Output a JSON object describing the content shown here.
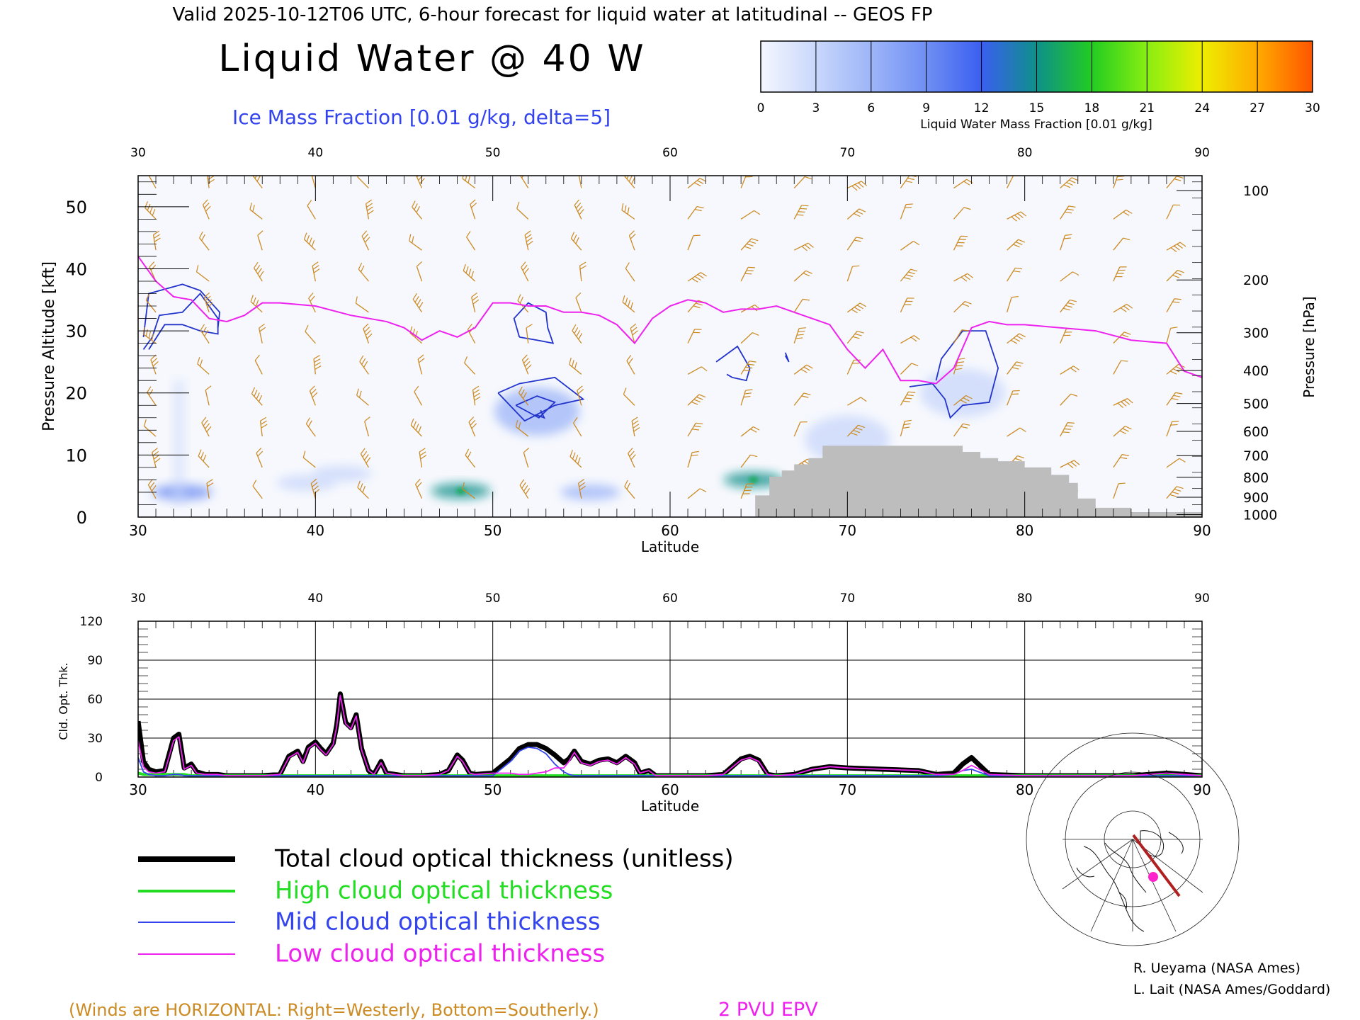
{
  "header": {
    "valid_line": "Valid 2025-10-12T06 UTC, 6-hour forecast for liquid water at latitudinal -- GEOS FP",
    "title": "Liquid Water @ 40 W",
    "subtitle": "Ice Mass Fraction [0.01 g/kg, delta=5]"
  },
  "colorbar": {
    "label": "Liquid Water Mass Fraction [0.01 g/kg]",
    "ticks": [
      "0",
      "3",
      "6",
      "9",
      "12",
      "15",
      "18",
      "21",
      "24",
      "27",
      "30"
    ],
    "colors": [
      "#f4f7fe",
      "#c9d7fb",
      "#9db5f8",
      "#6f8ff3",
      "#3a5ff0",
      "#0f8f8a",
      "#22cc22",
      "#88ee11",
      "#eeee00",
      "#ffaa00",
      "#ff5500"
    ]
  },
  "credits": {
    "line1": "R. Ueyama (NASA Ames)",
    "line2": "L. Lait (NASA Ames/Goddard)"
  },
  "footer": {
    "winds_note": "(Winds are HORIZONTAL: Right=Westerly, Bottom=Southerly.)",
    "epv_label": "2 PVU EPV",
    "winds_color": "#cc8a22",
    "epv_color": "#ee22ee"
  },
  "legend": {
    "items": [
      {
        "label": "Total cloud optical thickness (unitless)",
        "color": "#000000"
      },
      {
        "label": "High cloud optical thickness",
        "color": "#22dd22"
      },
      {
        "label": "Mid cloud optical thickness",
        "color": "#3344ee"
      },
      {
        "label": "Low cloud optical thickness",
        "color": "#ee22ee"
      }
    ]
  },
  "chart_data": [
    {
      "type": "heatmap",
      "title": "Liquid Water @ 40 W",
      "xlabel": "Latitude",
      "ylabel": "Pressure Altitude [kft]",
      "ylabel_right": "Pressure [hPa]",
      "xlim": [
        30,
        90
      ],
      "ylim": [
        0,
        55
      ],
      "x_ticks": [
        "30",
        "40",
        "50",
        "60",
        "70",
        "80",
        "90"
      ],
      "y_ticks": [
        "0",
        "10",
        "20",
        "30",
        "40",
        "50"
      ],
      "pressure_ticks": [
        {
          "label": "100",
          "kft": 52.6
        },
        {
          "label": "200",
          "kft": 38.2
        },
        {
          "label": "300",
          "kft": 29.7
        },
        {
          "label": "400",
          "kft": 23.6
        },
        {
          "label": "500",
          "kft": 18.3
        },
        {
          "label": "600",
          "kft": 13.8
        },
        {
          "label": "700",
          "kft": 9.9
        },
        {
          "label": "800",
          "kft": 6.4
        },
        {
          "label": "900",
          "kft": 3.2
        },
        {
          "label": "1000",
          "kft": 0.4
        }
      ],
      "epv_2pvu": {
        "lat": [
          30,
          31,
          32,
          33,
          34,
          35,
          36,
          37,
          38,
          40,
          42,
          44,
          45,
          46,
          47,
          48,
          49,
          50,
          51,
          52,
          53,
          54,
          55,
          56,
          57,
          58,
          59,
          60,
          61,
          62,
          63,
          64,
          65,
          66,
          67,
          68,
          69,
          70,
          71,
          72,
          73,
          74,
          75,
          76,
          77,
          78,
          79,
          80,
          82,
          84,
          86,
          88,
          89,
          90
        ],
        "kft": [
          42,
          38,
          35.5,
          35,
          32,
          31.5,
          32.5,
          34.5,
          34.5,
          34,
          32.5,
          31.5,
          30.5,
          28.5,
          30,
          29,
          30.5,
          34.5,
          34.5,
          34,
          34,
          33,
          33,
          32.5,
          31,
          28,
          32,
          34,
          35,
          34.5,
          33,
          33.5,
          33.5,
          34,
          33,
          32,
          31,
          27,
          24,
          27,
          22,
          22,
          21.5,
          24,
          30.5,
          31.5,
          31,
          31,
          30.5,
          30,
          28.5,
          28,
          23.5,
          22.5
        ]
      },
      "ice_contour_regions": [
        {
          "lat": 31.8,
          "kft": 33,
          "value": 5
        },
        {
          "lat": 52.5,
          "kft": 17,
          "value": 10
        },
        {
          "lat": 52.0,
          "kft": 30,
          "value": 5
        },
        {
          "lat": 64.2,
          "kft": 25,
          "value": 5
        },
        {
          "lat": 76.0,
          "kft": 25,
          "value": 5
        }
      ],
      "liquid_water_blobs": [
        {
          "lat": 32.5,
          "kft": 4,
          "value": 9
        },
        {
          "lat": 39.5,
          "kft": 5.5,
          "value": 4
        },
        {
          "lat": 41.5,
          "kft": 7,
          "value": 3
        },
        {
          "lat": 48.2,
          "kft": 4.2,
          "value": 14
        },
        {
          "lat": 52.5,
          "kft": 17,
          "value": 6
        },
        {
          "lat": 55.5,
          "kft": 4,
          "value": 6
        },
        {
          "lat": 64.7,
          "kft": 6,
          "value": 14
        },
        {
          "lat": 76.5,
          "kft": 20,
          "value": 3
        },
        {
          "lat": 70.0,
          "kft": 12.5,
          "value": 2
        }
      ],
      "terrain": {
        "lat": [
          64.8,
          65.6,
          66.3,
          67.0,
          67.8,
          68.6,
          75.0,
          76.5,
          77.5,
          78.5,
          80,
          81.5,
          82.5,
          83,
          84,
          86,
          90
        ],
        "kft": [
          3.5,
          6.5,
          7.5,
          8.5,
          9.5,
          11.5,
          11.5,
          10.5,
          9.5,
          9,
          8,
          6.8,
          5.5,
          3,
          1.5,
          0.8,
          0.8
        ]
      }
    },
    {
      "type": "line",
      "xlabel": "Latitude",
      "ylabel": "Cld. Opt. Thk.",
      "xlim": [
        30,
        90
      ],
      "ylim": [
        0,
        120
      ],
      "x_ticks": [
        "30",
        "40",
        "50",
        "60",
        "70",
        "80",
        "90"
      ],
      "y_ticks": [
        "0",
        "30",
        "60",
        "90",
        "120"
      ],
      "x": [
        30,
        30.3,
        30.6,
        31,
        31.5,
        32,
        32.3,
        32.6,
        33,
        33.3,
        33.8,
        34.5,
        35,
        36,
        37,
        38,
        38.5,
        39,
        39.3,
        39.6,
        40,
        40.3,
        40.6,
        41,
        41.2,
        41.4,
        41.7,
        42,
        42.3,
        42.6,
        43,
        43.3,
        43.7,
        44,
        44.5,
        45,
        46,
        47,
        47.5,
        48,
        48.3,
        48.7,
        49,
        50,
        51,
        51.5,
        52,
        52.5,
        53,
        53.5,
        54,
        54.3,
        54.6,
        55,
        55.5,
        56,
        56.5,
        57,
        57.5,
        58,
        58.3,
        58.8,
        59.2,
        60,
        62,
        63,
        64,
        64.5,
        65,
        65.5,
        66,
        67,
        68,
        69,
        70,
        72,
        74,
        75,
        76,
        76.5,
        77,
        78,
        80,
        84,
        86,
        88,
        90
      ],
      "series": [
        {
          "name": "Total cloud optical thickness (unitless)",
          "values": [
            43,
            12,
            6,
            4,
            5,
            30,
            33,
            7,
            10,
            4,
            2,
            2,
            1,
            1,
            1,
            2,
            16,
            20,
            12,
            23,
            27,
            22,
            18,
            26,
            40,
            64,
            42,
            38,
            48,
            22,
            5,
            2,
            12,
            3,
            2,
            1,
            1,
            2,
            5,
            17,
            13,
            3,
            2,
            3,
            14,
            22,
            25,
            25,
            22,
            17,
            11,
            14,
            20,
            12,
            10,
            13,
            14,
            11,
            16,
            11,
            3,
            5,
            1,
            1,
            1,
            2,
            14,
            16,
            13,
            2,
            1,
            2,
            6,
            8,
            7,
            6,
            5,
            2,
            3,
            10,
            15,
            2,
            1,
            1,
            1,
            3,
            1
          ]
        },
        {
          "name": "High cloud optical thickness",
          "values": [
            3,
            2,
            2,
            2,
            2,
            2,
            2,
            2,
            1,
            1,
            1,
            1,
            1,
            1,
            1,
            1,
            1,
            1,
            1,
            1,
            1,
            1,
            1,
            1,
            1,
            1,
            1,
            1,
            1,
            1,
            1,
            1,
            1,
            1,
            1,
            1,
            1,
            1,
            1,
            1,
            1,
            1,
            1,
            1,
            1,
            1,
            1,
            1,
            1,
            1,
            1,
            1,
            1,
            1,
            1,
            1,
            1,
            1,
            1,
            1,
            1,
            1,
            1,
            1,
            1,
            1,
            1,
            1,
            1,
            1,
            1,
            1,
            1,
            1,
            1,
            1,
            1,
            1,
            1,
            1,
            1,
            1,
            1,
            1,
            1,
            1,
            1
          ]
        },
        {
          "name": "Mid cloud optical thickness",
          "values": [
            15,
            4,
            2,
            1,
            1,
            2,
            2,
            1,
            1,
            1,
            1,
            1,
            1,
            1,
            1,
            1,
            1,
            1,
            1,
            1,
            1,
            1,
            1,
            1,
            1,
            1,
            1,
            1,
            1,
            1,
            1,
            1,
            1,
            1,
            1,
            1,
            1,
            1,
            1,
            1,
            1,
            1,
            1,
            1,
            12,
            20,
            23,
            22,
            18,
            10,
            4,
            2,
            1,
            1,
            1,
            1,
            1,
            1,
            1,
            1,
            1,
            1,
            1,
            1,
            1,
            1,
            1,
            1,
            1,
            1,
            1,
            1,
            1,
            1,
            1,
            1,
            1,
            1,
            2,
            5,
            6,
            1,
            1,
            1,
            1,
            1,
            1
          ]
        },
        {
          "name": "Low cloud optical thickness",
          "values": [
            28,
            8,
            4,
            3,
            4,
            28,
            31,
            6,
            9,
            3,
            2,
            2,
            1,
            1,
            1,
            2,
            15,
            19,
            11,
            22,
            26,
            21,
            17,
            25,
            39,
            63,
            41,
            37,
            47,
            21,
            5,
            2,
            11,
            3,
            2,
            1,
            1,
            2,
            5,
            16,
            12,
            3,
            2,
            3,
            3,
            2,
            2,
            3,
            4,
            7,
            7,
            12,
            19,
            11,
            9,
            12,
            13,
            10,
            15,
            10,
            3,
            5,
            1,
            1,
            1,
            2,
            13,
            15,
            12,
            2,
            1,
            2,
            6,
            8,
            7,
            6,
            5,
            2,
            2,
            5,
            9,
            2,
            1,
            1,
            1,
            3,
            1
          ]
        }
      ]
    }
  ]
}
